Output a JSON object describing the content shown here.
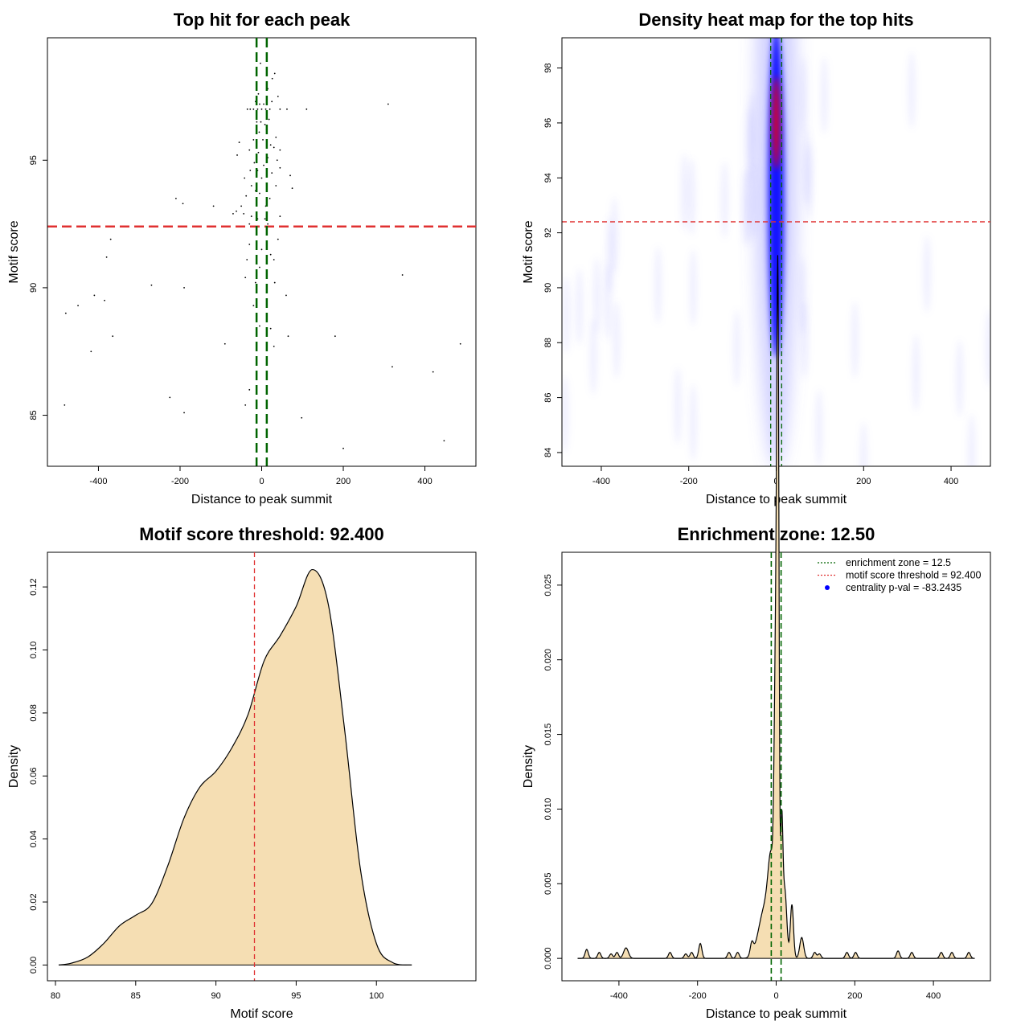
{
  "chart_data": [
    {
      "type": "scatter",
      "title": "Top hit for each peak",
      "xlabel": "Distance to peak summit",
      "ylabel": "Motif score",
      "xlim": [
        -525,
        525
      ],
      "ylim": [
        83,
        99.8
      ],
      "xticks": [
        -400,
        -200,
        0,
        200,
        400
      ],
      "yticks": [
        85,
        90,
        95
      ],
      "threshold": 92.4,
      "zone": 12.5,
      "points": [
        [
          -3,
          98.8
        ],
        [
          32,
          98.4
        ],
        [
          26,
          98.2
        ],
        [
          15,
          97.8
        ],
        [
          -8,
          97.6
        ],
        [
          40,
          97.5
        ],
        [
          -15,
          97.3
        ],
        [
          25,
          97.3
        ],
        [
          -5,
          97.2
        ],
        [
          5,
          97.2
        ],
        [
          310,
          97.2
        ],
        [
          -35,
          97.0
        ],
        [
          -28,
          97.0
        ],
        [
          -20,
          97.0
        ],
        [
          -10,
          97.0
        ],
        [
          0,
          97.0
        ],
        [
          10,
          97.0
        ],
        [
          20,
          97.0
        ],
        [
          45,
          97.0
        ],
        [
          62,
          97.0
        ],
        [
          110,
          97.0
        ],
        [
          -12,
          96.5
        ],
        [
          -2,
          96.5
        ],
        [
          8,
          96.4
        ],
        [
          18,
          96.6
        ],
        [
          -6,
          96.1
        ],
        [
          12,
          96.2
        ],
        [
          35,
          95.9
        ],
        [
          -20,
          95.8
        ],
        [
          3,
          95.8
        ],
        [
          22,
          95.6
        ],
        [
          -55,
          95.7
        ],
        [
          30,
          95.5
        ],
        [
          -30,
          95.4
        ],
        [
          45,
          95.4
        ],
        [
          -60,
          95.2
        ],
        [
          -8,
          95.3
        ],
        [
          15,
          95.1
        ],
        [
          38,
          95.0
        ],
        [
          -18,
          94.9
        ],
        [
          5,
          94.8
        ],
        [
          45,
          94.7
        ],
        [
          -28,
          94.6
        ],
        [
          -10,
          94.6
        ],
        [
          25,
          94.5
        ],
        [
          70,
          94.4
        ],
        [
          -42,
          94.3
        ],
        [
          0,
          94.3
        ],
        [
          12,
          94.1
        ],
        [
          -25,
          94.0
        ],
        [
          35,
          94.0
        ],
        [
          -15,
          93.8
        ],
        [
          75,
          93.9
        ],
        [
          -5,
          93.7
        ],
        [
          20,
          93.5
        ],
        [
          -210,
          93.5
        ],
        [
          -38,
          93.6
        ],
        [
          -193,
          93.3
        ],
        [
          -118,
          93.2
        ],
        [
          -50,
          93.2
        ],
        [
          10,
          93.2
        ],
        [
          -62,
          93.0
        ],
        [
          -44,
          92.9
        ],
        [
          -25,
          92.8
        ],
        [
          -10,
          92.7
        ],
        [
          -70,
          92.9
        ],
        [
          8,
          92.7
        ],
        [
          45,
          92.8
        ],
        [
          -30,
          92.5
        ],
        [
          15,
          92.5
        ],
        [
          -370,
          91.9
        ],
        [
          40,
          91.9
        ],
        [
          -30,
          91.7
        ],
        [
          0,
          91.5
        ],
        [
          22,
          91.3
        ],
        [
          -380,
          91.2
        ],
        [
          -36,
          91.1
        ],
        [
          30,
          91.1
        ],
        [
          -5,
          90.8
        ],
        [
          -40,
          90.4
        ],
        [
          345,
          90.5
        ],
        [
          -15,
          90.2
        ],
        [
          -270,
          90.1
        ],
        [
          32,
          90.2
        ],
        [
          -190,
          90.0
        ],
        [
          60,
          89.7
        ],
        [
          -410,
          89.7
        ],
        [
          -385,
          89.5
        ],
        [
          -450,
          89.3
        ],
        [
          -20,
          89.3
        ],
        [
          -480,
          89.0
        ],
        [
          -5,
          88.5
        ],
        [
          22,
          88.4
        ],
        [
          -365,
          88.1
        ],
        [
          65,
          88.1
        ],
        [
          180,
          88.1
        ],
        [
          -90,
          87.8
        ],
        [
          30,
          87.7
        ],
        [
          487,
          87.8
        ],
        [
          -418,
          87.5
        ],
        [
          320,
          86.9
        ],
        [
          420,
          86.7
        ],
        [
          -30,
          86.0
        ],
        [
          -225,
          85.7
        ],
        [
          -483,
          85.4
        ],
        [
          -40,
          85.4
        ],
        [
          -190,
          85.1
        ],
        [
          98,
          84.9
        ],
        [
          447,
          84.0
        ],
        [
          200,
          83.7
        ]
      ]
    },
    {
      "type": "heatmap",
      "title": "Density heat map for the top hits",
      "xlabel": "Distance to peak summit",
      "ylabel": "Motif score",
      "xlim": [
        -490,
        490
      ],
      "ylim": [
        83.5,
        99.1
      ],
      "xticks": [
        -400,
        -200,
        0,
        200,
        400
      ],
      "yticks": [
        84,
        86,
        88,
        90,
        92,
        94,
        96,
        98
      ],
      "threshold": 92.4,
      "zone": 12.5,
      "core": {
        "x": 0,
        "y_min": 87.4,
        "y_max": 99.5,
        "peak_y": 96
      }
    },
    {
      "type": "area",
      "title": "Motif score threshold: 92.400",
      "xlabel": "Motif score",
      "ylabel": "Density",
      "xlim": [
        79.5,
        106.2
      ],
      "ylim": [
        -0.005,
        0.131
      ],
      "xticks": [
        80,
        85,
        90,
        95,
        100
      ],
      "yticks": [
        0.0,
        0.02,
        0.04,
        0.06,
        0.08,
        0.1,
        0.12
      ],
      "ytick_labels": [
        "0.00",
        "0.02",
        "0.04",
        "0.06",
        "0.08",
        "0.10",
        "0.12"
      ],
      "threshold": 92.4,
      "x": [
        80.2,
        81,
        82,
        83,
        84,
        85,
        86,
        87,
        88,
        89,
        90,
        91,
        92,
        93,
        94,
        95,
        96,
        97,
        98,
        99,
        100,
        101,
        102.2
      ],
      "values": [
        0.0,
        0.0006,
        0.0025,
        0.0068,
        0.0125,
        0.0158,
        0.0195,
        0.0315,
        0.0465,
        0.0565,
        0.0615,
        0.069,
        0.0795,
        0.0965,
        0.1045,
        0.1138,
        0.1255,
        0.1145,
        0.0755,
        0.0305,
        0.0068,
        0.0008,
        0.0
      ]
    },
    {
      "type": "area",
      "title": "Enrichment zone: 12.50",
      "xlabel": "Distance to peak summit",
      "ylabel": "Density",
      "xlim": [
        -545,
        545
      ],
      "ylim": [
        -0.0015,
        0.0272
      ],
      "xticks": [
        -400,
        -200,
        0,
        200,
        400
      ],
      "yticks": [
        0.0,
        0.005,
        0.01,
        0.015,
        0.02,
        0.025
      ],
      "ytick_labels": [
        "0.000",
        "0.005",
        "0.010",
        "0.015",
        "0.020",
        "0.025"
      ],
      "zone": 12.5,
      "range": [
        -505,
        505
      ],
      "bumps": [
        [
          -482,
          0.0006,
          4
        ],
        [
          -450,
          0.0004,
          4
        ],
        [
          -420,
          0.0003,
          4
        ],
        [
          -405,
          0.0004,
          4
        ],
        [
          -382,
          0.0007,
          6
        ],
        [
          -270,
          0.0004,
          4
        ],
        [
          -230,
          0.0003,
          4
        ],
        [
          -215,
          0.0004,
          4
        ],
        [
          -193,
          0.001,
          4
        ],
        [
          -120,
          0.0004,
          4
        ],
        [
          -98,
          0.0004,
          4
        ],
        [
          -62,
          0.0008,
          4
        ],
        [
          -28,
          0.0034,
          16
        ],
        [
          -12,
          0.005,
          8
        ],
        [
          -2,
          0.0145,
          3.5
        ],
        [
          3,
          0.0195,
          3
        ],
        [
          5,
          0.026,
          2.6
        ],
        [
          14,
          0.0085,
          3
        ],
        [
          22,
          0.0045,
          5
        ],
        [
          40,
          0.0036,
          4
        ],
        [
          65,
          0.0014,
          5
        ],
        [
          98,
          0.0004,
          4
        ],
        [
          110,
          0.0003,
          4
        ],
        [
          180,
          0.0004,
          4
        ],
        [
          202,
          0.0004,
          4
        ],
        [
          310,
          0.0005,
          4
        ],
        [
          345,
          0.0004,
          4
        ],
        [
          420,
          0.0004,
          4
        ],
        [
          447,
          0.0004,
          4
        ],
        [
          490,
          0.0004,
          4
        ]
      ],
      "legend": [
        {
          "label": "enrichment zone = 12.5",
          "style": "dotted",
          "color": "#006400"
        },
        {
          "label": "motif score threshold = 92.400",
          "style": "dotted",
          "color": "#e03131"
        },
        {
          "label": "centrality p-val = -83.2435",
          "style": "dot",
          "color": "#0000ff"
        }
      ]
    }
  ]
}
